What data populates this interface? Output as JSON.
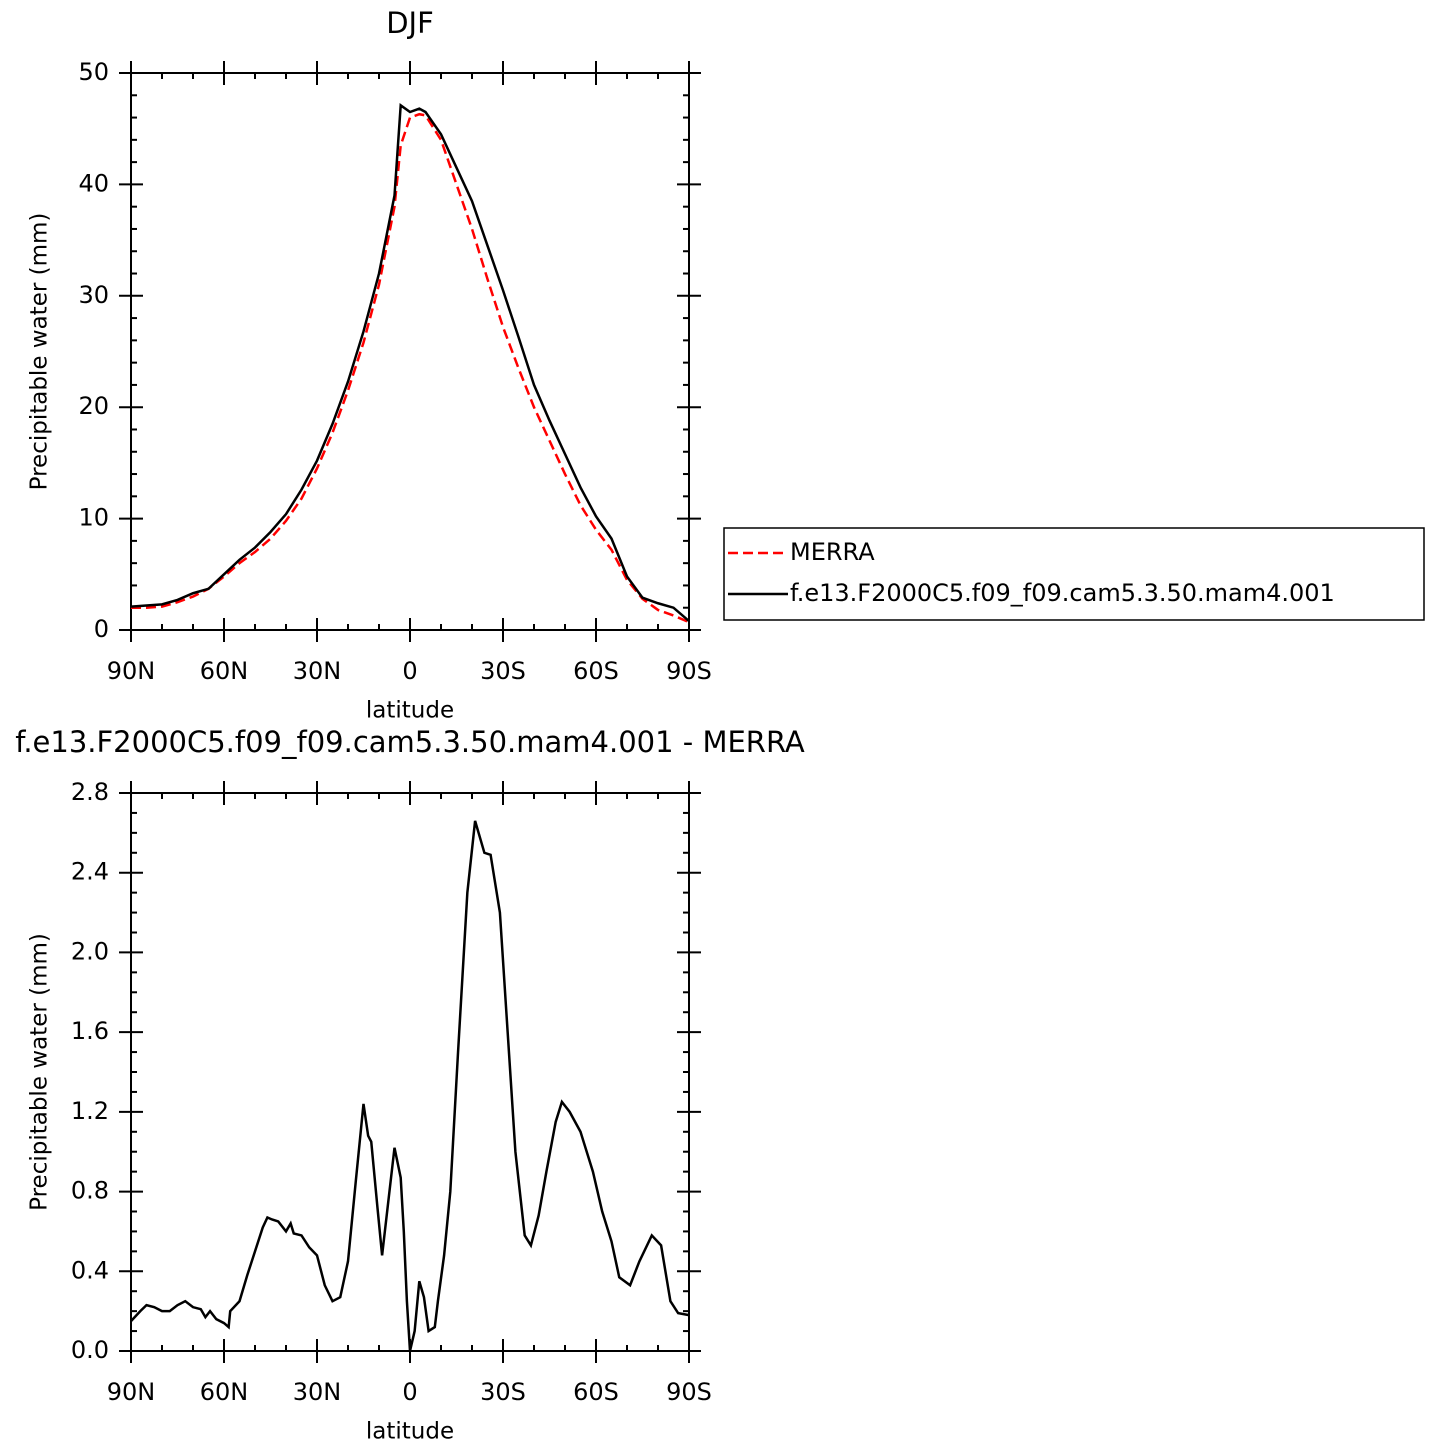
{
  "chart_data": [
    {
      "type": "line",
      "title": "DJF",
      "xlabel": "latitude",
      "ylabel": "Precipitable water (mm)",
      "x": [
        90,
        85,
        80,
        75,
        70,
        65,
        60,
        55,
        50,
        45,
        40,
        35,
        30,
        25,
        20,
        15,
        10,
        5,
        3,
        0,
        -3,
        -5,
        -10,
        -15,
        -20,
        -25,
        -30,
        -35,
        -40,
        -45,
        -50,
        -55,
        -60,
        -65,
        -70,
        -75,
        -80,
        -85,
        -90
      ],
      "series": [
        {
          "name": "MERRA",
          "color": "#ff0000",
          "linestyle": "dashed",
          "values": [
            2.0,
            2.0,
            2.1,
            2.5,
            3.0,
            3.7,
            4.8,
            6.0,
            7.0,
            8.2,
            9.8,
            11.8,
            14.5,
            17.7,
            21.5,
            25.8,
            31.0,
            38.0,
            43.5,
            46.0,
            46.3,
            46.2,
            44.0,
            40.0,
            36.0,
            31.5,
            27.2,
            23.5,
            20.0,
            17.0,
            14.0,
            11.2,
            9.0,
            7.2,
            4.5,
            2.8,
            1.8,
            1.3,
            0.7
          ]
        },
        {
          "name": "f.e13.F2000C5.f09_f09.cam5.3.50.mam4.001",
          "color": "#000000",
          "linestyle": "solid",
          "values": [
            2.1,
            2.2,
            2.3,
            2.7,
            3.3,
            3.7,
            5.0,
            6.3,
            7.4,
            8.8,
            10.4,
            12.6,
            15.2,
            18.5,
            22.3,
            26.8,
            32.0,
            39.0,
            47.1,
            46.5,
            46.8,
            46.5,
            44.5,
            41.5,
            38.5,
            34.5,
            30.5,
            26.3,
            22.0,
            18.8,
            15.8,
            12.8,
            10.2,
            8.2,
            4.8,
            2.9,
            2.4,
            2.0,
            0.8
          ]
        }
      ],
      "xlim": [
        90,
        -90
      ],
      "xticks": [
        {
          "value": 90,
          "label": "90N"
        },
        {
          "value": 60,
          "label": "60N"
        },
        {
          "value": 30,
          "label": "30N"
        },
        0,
        {
          "value": -30,
          "label": "30S"
        },
        {
          "value": -60,
          "label": "60S"
        },
        {
          "value": -90,
          "label": "90S"
        }
      ],
      "ylim": [
        0,
        50
      ],
      "yticks": [
        0,
        10,
        20,
        30,
        40,
        50
      ],
      "legend": "right",
      "grid": false
    },
    {
      "type": "line",
      "title": "f.e13.F2000C5.f09_f09.cam5.3.50.mam4.001 - MERRA",
      "xlabel": "latitude",
      "ylabel": "Precipitable water (mm)",
      "x": [
        90,
        87,
        85,
        82.5,
        80,
        77.5,
        75,
        72.5,
        70,
        67.5,
        66,
        64.5,
        62.5,
        60,
        58.5,
        58,
        55,
        52.5,
        50,
        47.5,
        46,
        44.5,
        42.5,
        40,
        38.5,
        37.5,
        35,
        32.5,
        30,
        27.5,
        25,
        22.5,
        20,
        17.5,
        15,
        13.5,
        12.5,
        10.5,
        9,
        7,
        5,
        3,
        2,
        1,
        0,
        -1.5,
        -3,
        -4.5,
        -6,
        -8,
        -9,
        -11,
        -13,
        -15.5,
        -18.5,
        -21,
        -24,
        -26,
        -29,
        -31.5,
        -34,
        -37,
        -39,
        -41.5,
        -44,
        -47,
        -49,
        -51.5,
        -55,
        -59,
        -62,
        -65,
        -67.5,
        -71,
        -74,
        -78,
        -81,
        -84,
        -86.5,
        -90
      ],
      "series": [
        {
          "color": "#000000",
          "linestyle": "solid",
          "values": [
            0.15,
            0.2,
            0.23,
            0.22,
            0.2,
            0.2,
            0.23,
            0.25,
            0.22,
            0.21,
            0.17,
            0.2,
            0.16,
            0.14,
            0.12,
            0.2,
            0.25,
            0.38,
            0.5,
            0.62,
            0.67,
            0.66,
            0.65,
            0.6,
            0.64,
            0.59,
            0.58,
            0.52,
            0.48,
            0.33,
            0.25,
            0.27,
            0.45,
            0.85,
            1.24,
            1.08,
            1.05,
            0.72,
            0.48,
            0.75,
            1.02,
            0.87,
            0.6,
            0.25,
            0.0,
            0.1,
            0.35,
            0.27,
            0.1,
            0.12,
            0.25,
            0.48,
            0.8,
            1.5,
            2.3,
            2.66,
            2.5,
            2.49,
            2.2,
            1.6,
            1.0,
            0.58,
            0.53,
            0.68,
            0.9,
            1.15,
            1.25,
            1.2,
            1.1,
            0.9,
            0.7,
            0.55,
            0.37,
            0.33,
            0.45,
            0.58,
            0.53,
            0.25,
            0.19,
            0.18
          ]
        }
      ],
      "xlim": [
        90,
        -90
      ],
      "xticks": [
        {
          "value": 90,
          "label": "90N"
        },
        {
          "value": 60,
          "label": "60N"
        },
        {
          "value": 30,
          "label": "30N"
        },
        0,
        {
          "value": -30,
          "label": "30S"
        },
        {
          "value": -60,
          "label": "60S"
        },
        {
          "value": -90,
          "label": "90S"
        }
      ],
      "ylim": [
        0,
        2.8
      ],
      "yticks": [
        {
          "value": 0,
          "label": "0.0"
        },
        0.4,
        0.8,
        1.2,
        1.6,
        {
          "value": 2,
          "label": "2.0"
        },
        2.4,
        2.8
      ],
      "grid": false
    }
  ]
}
